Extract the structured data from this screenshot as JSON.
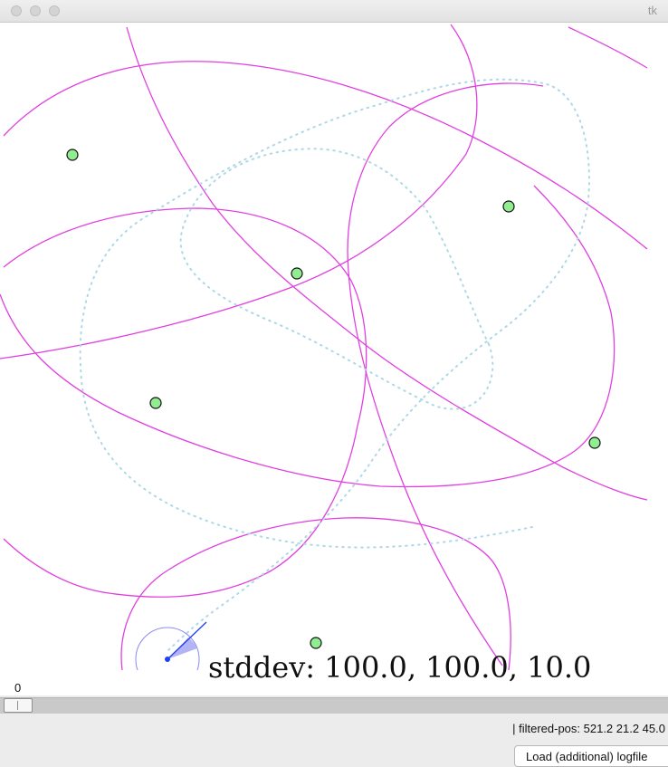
{
  "window": {
    "title": "tk"
  },
  "canvas": {
    "stddev_text": "stddev: 100.0, 100.0, 10.0",
    "colors": {
      "circles": "#e040e0",
      "trajectory": "#add8e6",
      "landmark_fill": "#90ee90",
      "robot": "#1f3ff5",
      "background": "#ffffff"
    },
    "icons": [
      "landmark-marker",
      "robot-position-marker"
    ]
  },
  "slider": {
    "value": "0"
  },
  "status": {
    "text": "| filtered-pos: 521.2 21.2 45.0"
  },
  "buttons": {
    "load_label": "Load (additional) logfile"
  }
}
